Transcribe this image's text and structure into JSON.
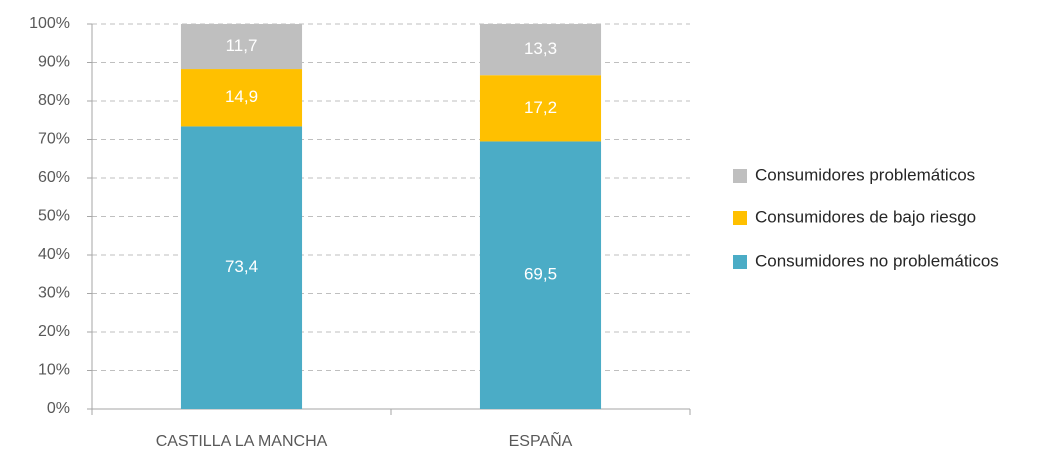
{
  "chart_data": {
    "type": "stacked_bar",
    "categories": [
      "CASTILLA LA MANCHA",
      "ESPAÑA"
    ],
    "series": [
      {
        "name": "Consumidores no problemáticos",
        "color": "#4bacc6",
        "values": [
          73.4,
          69.5
        ],
        "value_labels": [
          "73,4",
          "69,5"
        ]
      },
      {
        "name": "Consumidores de bajo riesgo",
        "color": "#ffc000",
        "values": [
          14.9,
          17.2
        ],
        "value_labels": [
          "14,9",
          "17,2"
        ]
      },
      {
        "name": "Consumidores problemáticos",
        "color": "#bfbfbf",
        "values": [
          11.7,
          13.3
        ],
        "value_labels": [
          "11,7",
          "13,3"
        ]
      }
    ],
    "ylim": [
      0,
      100
    ],
    "yticks": [
      {
        "value": 0,
        "label": "0%"
      },
      {
        "value": 10,
        "label": "10%"
      },
      {
        "value": 20,
        "label": "20%"
      },
      {
        "value": 30,
        "label": "30%"
      },
      {
        "value": 40,
        "label": "40%"
      },
      {
        "value": 50,
        "label": "50%"
      },
      {
        "value": 60,
        "label": "60%"
      },
      {
        "value": 70,
        "label": "70%"
      },
      {
        "value": 80,
        "label": "80%"
      },
      {
        "value": 90,
        "label": "90%"
      },
      {
        "value": 100,
        "label": "100%"
      }
    ],
    "grid": true,
    "legend": "right"
  }
}
